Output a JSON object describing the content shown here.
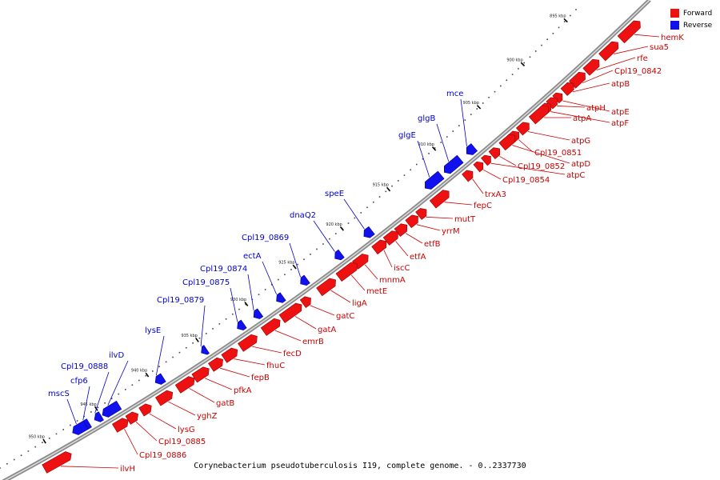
{
  "caption": "Corynebacterium pseudotuberculosis I19, complete genome. - 0..2337730",
  "legend": {
    "forward": {
      "label": "Forward",
      "color": "#ee1111"
    },
    "reverse": {
      "label": "Reverse",
      "color": "#1111ee"
    }
  },
  "ticks": [
    {
      "kbp": 895,
      "label": "895 kbp"
    },
    {
      "kbp": 900,
      "label": "900 kbp"
    },
    {
      "kbp": 905,
      "label": "905 kbp"
    },
    {
      "kbp": 910,
      "label": "910 kbp"
    },
    {
      "kbp": 915,
      "label": "915 kbp"
    },
    {
      "kbp": 920,
      "label": "920 kbp"
    },
    {
      "kbp": 925,
      "label": "925 kbp"
    },
    {
      "kbp": 930,
      "label": "930 kbp"
    },
    {
      "kbp": 935,
      "label": "935 kbp"
    },
    {
      "kbp": 940,
      "label": "940 kbp"
    },
    {
      "kbp": 945,
      "label": "945 kbp"
    },
    {
      "kbp": 950,
      "label": "950 kbp"
    }
  ],
  "genes": [
    {
      "name": "hemK",
      "strand": "forward"
    },
    {
      "name": "sua5",
      "strand": "forward"
    },
    {
      "name": "rfe",
      "strand": "forward"
    },
    {
      "name": "Cpl19_0842",
      "strand": "forward"
    },
    {
      "name": "atpB",
      "strand": "forward"
    },
    {
      "name": "atpE",
      "strand": "forward"
    },
    {
      "name": "atpH",
      "strand": "forward"
    },
    {
      "name": "atpF",
      "strand": "forward"
    },
    {
      "name": "atpA",
      "strand": "forward"
    },
    {
      "name": "atpG",
      "strand": "forward"
    },
    {
      "name": "Cpl19_0851",
      "strand": "forward"
    },
    {
      "name": "atpD",
      "strand": "forward"
    },
    {
      "name": "Cpl19_0852",
      "strand": "forward"
    },
    {
      "name": "atpC",
      "strand": "forward"
    },
    {
      "name": "Cpl19_0854",
      "strand": "forward"
    },
    {
      "name": "trxA3",
      "strand": "forward"
    },
    {
      "name": "fepC",
      "strand": "forward"
    },
    {
      "name": "mutT",
      "strand": "forward"
    },
    {
      "name": "yrrM",
      "strand": "forward"
    },
    {
      "name": "etfB",
      "strand": "forward"
    },
    {
      "name": "etfA",
      "strand": "forward"
    },
    {
      "name": "iscC",
      "strand": "forward"
    },
    {
      "name": "mnmA",
      "strand": "forward"
    },
    {
      "name": "metE",
      "strand": "forward"
    },
    {
      "name": "ligA",
      "strand": "forward"
    },
    {
      "name": "gatC",
      "strand": "forward"
    },
    {
      "name": "gatA",
      "strand": "forward"
    },
    {
      "name": "emrB",
      "strand": "forward"
    },
    {
      "name": "fecD",
      "strand": "forward"
    },
    {
      "name": "fhuC",
      "strand": "forward"
    },
    {
      "name": "fepB",
      "strand": "forward"
    },
    {
      "name": "pfkA",
      "strand": "forward"
    },
    {
      "name": "gatB",
      "strand": "forward"
    },
    {
      "name": "yghZ",
      "strand": "forward"
    },
    {
      "name": "lysG",
      "strand": "forward"
    },
    {
      "name": "Cpl19_0885",
      "strand": "forward"
    },
    {
      "name": "Cpl19_0886",
      "strand": "forward"
    },
    {
      "name": "ilvH",
      "strand": "forward"
    },
    {
      "name": "mce",
      "strand": "reverse"
    },
    {
      "name": "glgB",
      "strand": "reverse"
    },
    {
      "name": "glgE",
      "strand": "reverse"
    },
    {
      "name": "speE",
      "strand": "reverse"
    },
    {
      "name": "dnaQ2",
      "strand": "reverse"
    },
    {
      "name": "Cpl19_0869",
      "strand": "reverse"
    },
    {
      "name": "ectA",
      "strand": "reverse"
    },
    {
      "name": "Cpl19_0874",
      "strand": "reverse"
    },
    {
      "name": "Cpl19_0875",
      "strand": "reverse"
    },
    {
      "name": "Cpl19_0879",
      "strand": "reverse"
    },
    {
      "name": "lysE",
      "strand": "reverse"
    },
    {
      "name": "ilvD",
      "strand": "reverse"
    },
    {
      "name": "Cpl19_0888",
      "strand": "reverse"
    },
    {
      "name": "cfp6",
      "strand": "reverse"
    },
    {
      "name": "mscS",
      "strand": "reverse"
    }
  ]
}
